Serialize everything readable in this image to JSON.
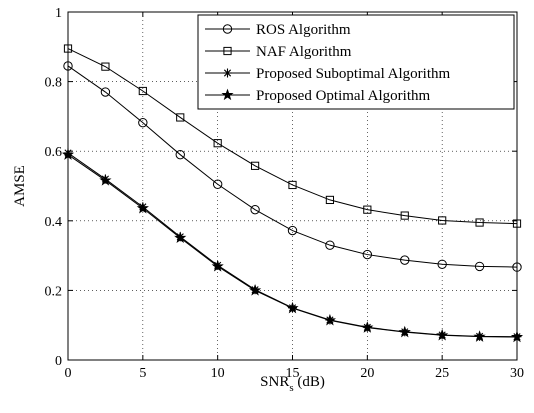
{
  "chart_data": {
    "type": "line",
    "title": "",
    "xlabel": "SNR",
    "xlabel_subscript": "s",
    "xlabel_suffix": " (dB)",
    "ylabel": "AMSE",
    "xlim": [
      0,
      30
    ],
    "ylim": [
      0,
      1
    ],
    "xticks": [
      0,
      5,
      10,
      15,
      20,
      25,
      30
    ],
    "yticks": [
      0,
      0.2,
      0.4,
      0.6,
      0.8,
      1
    ],
    "ytick_labels": [
      "0",
      "0.2",
      "0.4",
      "0.6",
      "0.8",
      "1"
    ],
    "grid": true,
    "legend_position": "top-right",
    "x": [
      0,
      2.5,
      5,
      7.5,
      10,
      12.5,
      15,
      17.5,
      20,
      22.5,
      25,
      27.5,
      30
    ],
    "series": [
      {
        "name": "ROS Algorithm",
        "marker": "circle",
        "values": [
          0.845,
          0.77,
          0.682,
          0.59,
          0.505,
          0.432,
          0.372,
          0.33,
          0.303,
          0.287,
          0.275,
          0.269,
          0.267
        ]
      },
      {
        "name": "NAF Algorithm",
        "marker": "square",
        "values": [
          0.895,
          0.843,
          0.773,
          0.697,
          0.623,
          0.558,
          0.503,
          0.46,
          0.432,
          0.415,
          0.401,
          0.395,
          0.392
        ]
      },
      {
        "name": "Proposed Suboptimal Algorithm",
        "marker": "asterisk",
        "values": [
          0.595,
          0.52,
          0.44,
          0.354,
          0.272,
          0.202,
          0.15,
          0.115,
          0.094,
          0.081,
          0.072,
          0.068,
          0.067
        ]
      },
      {
        "name": "Proposed Optimal Algorithm",
        "marker": "star",
        "values": [
          0.59,
          0.516,
          0.436,
          0.351,
          0.269,
          0.2,
          0.149,
          0.114,
          0.093,
          0.08,
          0.071,
          0.067,
          0.066
        ]
      }
    ]
  }
}
